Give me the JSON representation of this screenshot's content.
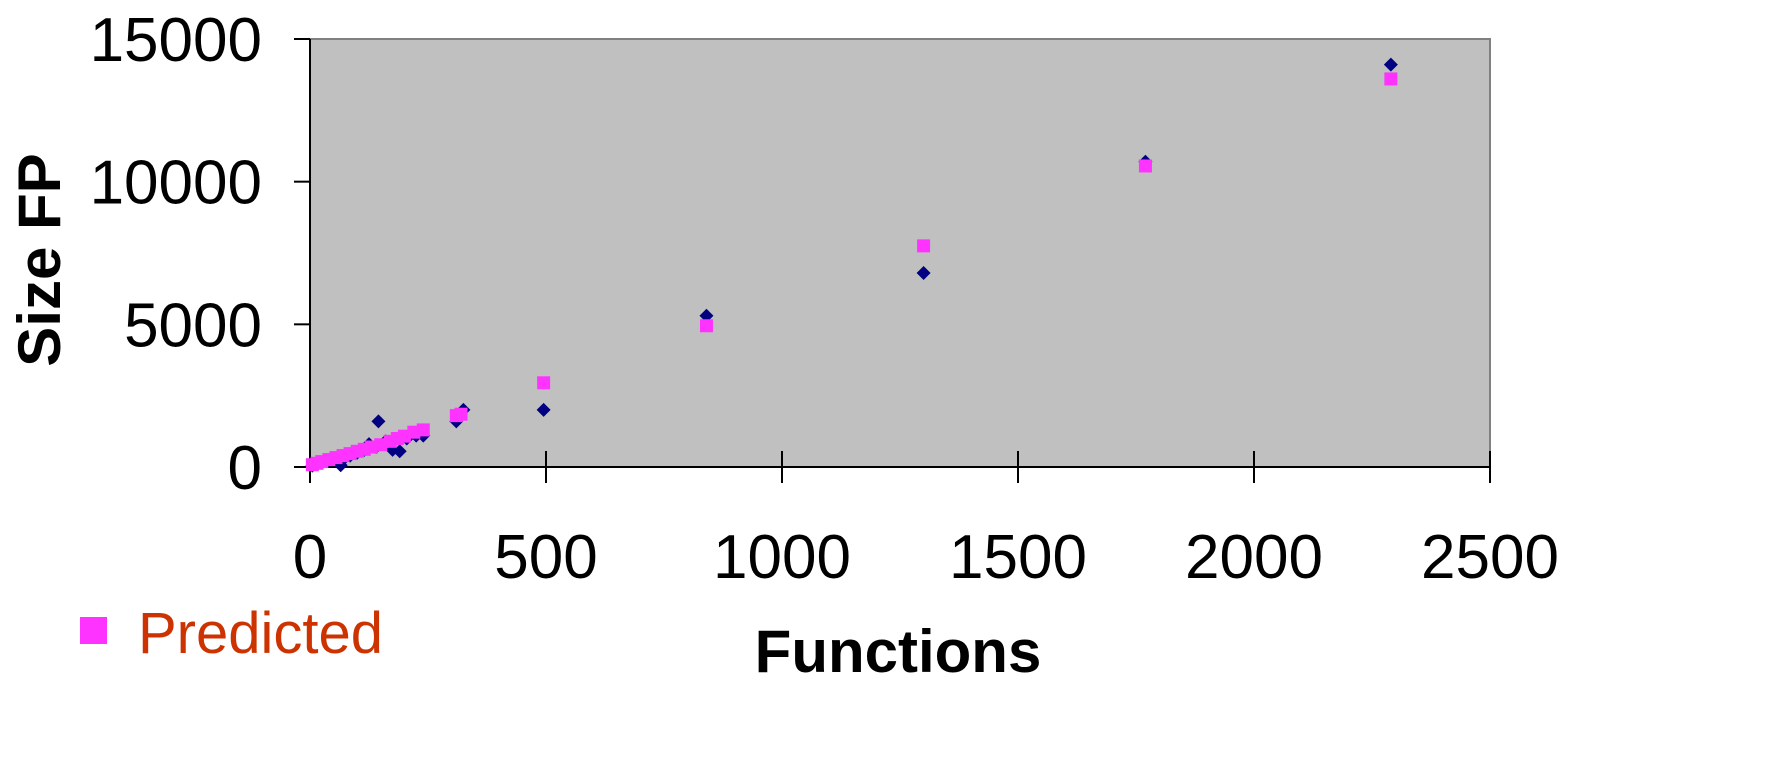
{
  "chart_data": {
    "type": "scatter",
    "xlabel": "Functions",
    "ylabel": "Size FP",
    "xlim": [
      0,
      2500
    ],
    "ylim": [
      0,
      15000
    ],
    "x_ticks": [
      "0",
      "500",
      "1000",
      "1500",
      "2000",
      "2500"
    ],
    "y_ticks": [
      "0",
      "5000",
      "10000",
      "15000"
    ],
    "plot_background": "#c0c0c0",
    "grid": false,
    "legend_position": "bottom-left",
    "legend_visible_entries": [
      "Predicted"
    ],
    "series": [
      {
        "marker": "diamond",
        "color": "#000080",
        "points": [
          [
            5,
            50
          ],
          [
            15,
            100
          ],
          [
            25,
            150
          ],
          [
            35,
            200
          ],
          [
            45,
            250
          ],
          [
            55,
            300
          ],
          [
            65,
            60
          ],
          [
            75,
            350
          ],
          [
            85,
            400
          ],
          [
            100,
            500
          ],
          [
            115,
            600
          ],
          [
            125,
            800
          ],
          [
            140,
            700
          ],
          [
            145,
            1600
          ],
          [
            160,
            900
          ],
          [
            175,
            600
          ],
          [
            190,
            550
          ],
          [
            205,
            1000
          ],
          [
            225,
            1100
          ],
          [
            240,
            1100
          ],
          [
            310,
            1600
          ],
          [
            325,
            2000
          ],
          [
            495,
            2000
          ],
          [
            840,
            5300
          ],
          [
            1300,
            6800
          ],
          [
            1770,
            10700
          ],
          [
            2290,
            14100
          ]
        ]
      },
      {
        "name": "Predicted",
        "marker": "square",
        "color": "#ff33ff",
        "points": [
          [
            5,
            80
          ],
          [
            15,
            130
          ],
          [
            25,
            190
          ],
          [
            40,
            260
          ],
          [
            55,
            330
          ],
          [
            70,
            400
          ],
          [
            85,
            470
          ],
          [
            100,
            550
          ],
          [
            115,
            620
          ],
          [
            130,
            700
          ],
          [
            150,
            780
          ],
          [
            170,
            900
          ],
          [
            185,
            1000
          ],
          [
            200,
            1080
          ],
          [
            220,
            1220
          ],
          [
            240,
            1300
          ],
          [
            310,
            1800
          ],
          [
            320,
            1850
          ],
          [
            495,
            2950
          ],
          [
            840,
            4950
          ],
          [
            1300,
            7750
          ],
          [
            1770,
            10550
          ],
          [
            2290,
            13600
          ]
        ]
      }
    ]
  },
  "legend": {
    "label": "Predicted",
    "label_color": "#cc3300",
    "marker_color": "#ff33ff"
  }
}
